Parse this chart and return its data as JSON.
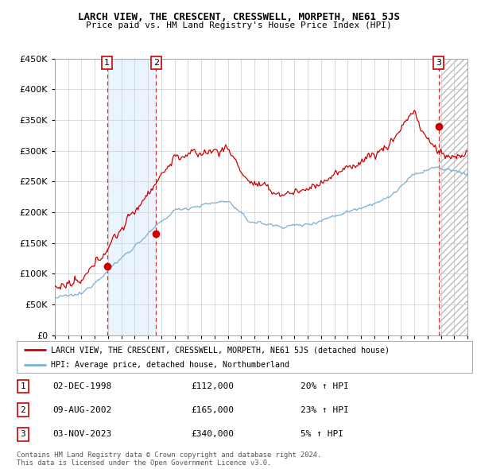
{
  "title": "LARCH VIEW, THE CRESCENT, CRESSWELL, MORPETH, NE61 5JS",
  "subtitle": "Price paid vs. HM Land Registry's House Price Index (HPI)",
  "legend_line1": "LARCH VIEW, THE CRESCENT, CRESSWELL, MORPETH, NE61 5JS (detached house)",
  "legend_line2": "HPI: Average price, detached house, Northumberland",
  "footer": "Contains HM Land Registry data © Crown copyright and database right 2024.\nThis data is licensed under the Open Government Licence v3.0.",
  "sales": [
    {
      "num": 1,
      "date": "02-DEC-1998",
      "price": 112000,
      "pct": "20% ↑ HPI",
      "year": 1998.92
    },
    {
      "num": 2,
      "date": "09-AUG-2002",
      "price": 165000,
      "pct": "23% ↑ HPI",
      "year": 2002.61
    },
    {
      "num": 3,
      "date": "03-NOV-2023",
      "price": 340000,
      "pct": "5% ↑ HPI",
      "year": 2023.84
    }
  ],
  "ylim": [
    0,
    450000
  ],
  "xlim": [
    1995.0,
    2026.0
  ],
  "yticks": [
    0,
    50000,
    100000,
    150000,
    200000,
    250000,
    300000,
    350000,
    400000,
    450000
  ],
  "xticks": [
    1995,
    1996,
    1997,
    1998,
    1999,
    2000,
    2001,
    2002,
    2003,
    2004,
    2005,
    2006,
    2007,
    2008,
    2009,
    2010,
    2011,
    2012,
    2013,
    2014,
    2015,
    2016,
    2017,
    2018,
    2019,
    2020,
    2021,
    2022,
    2023,
    2024,
    2025,
    2026
  ],
  "red_color": "#cc0000",
  "blue_color": "#7bafd4",
  "bg_color": "#ffffff",
  "grid_color": "#cccccc",
  "shade_blue_color": "#ddeeff",
  "hatch_color": "#bbbbbb"
}
